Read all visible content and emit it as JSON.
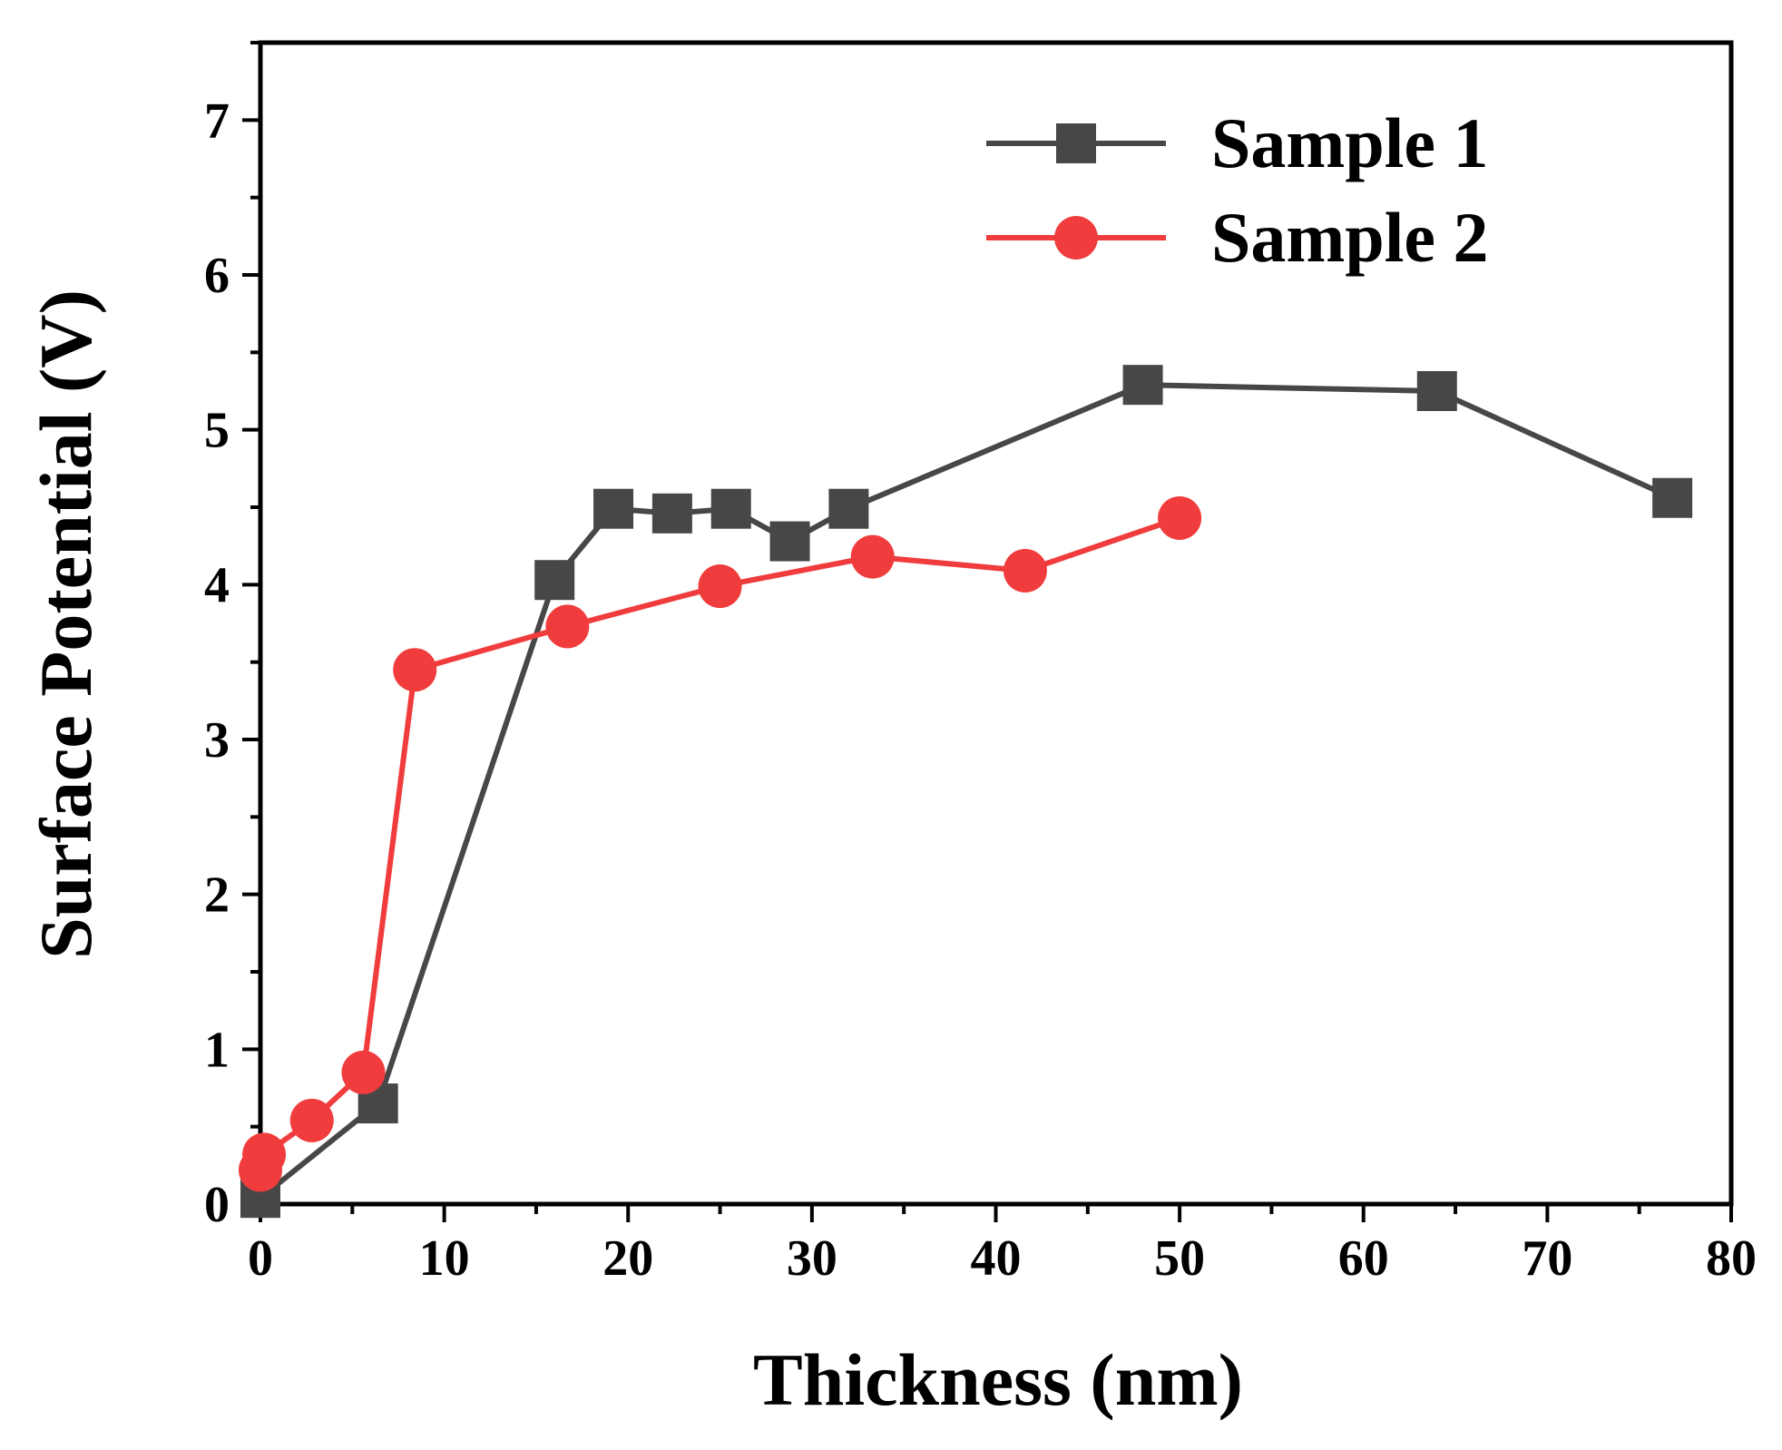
{
  "chart_data": {
    "type": "line",
    "title": "",
    "xlabel": "Thickness (nm)",
    "ylabel": "Surface Potential (V)",
    "xlim": [
      0,
      80
    ],
    "ylim": [
      0,
      7.5
    ],
    "xticks": [
      0,
      10,
      20,
      30,
      40,
      50,
      60,
      70,
      80
    ],
    "yticks": [
      0,
      1,
      2,
      3,
      4,
      5,
      6,
      7
    ],
    "xtick_labels": [
      "0",
      "10",
      "20",
      "30",
      "40",
      "50",
      "60",
      "70",
      "80"
    ],
    "ytick_labels": [
      "0",
      "1",
      "2",
      "3",
      "4",
      "5",
      "6",
      "7"
    ],
    "grid": false,
    "legend_position": "top-right",
    "series": [
      {
        "name": "Sample 1",
        "marker": "square",
        "color": "#474747",
        "x": [
          0,
          6.4,
          16,
          19.2,
          22.4,
          25.6,
          28.8,
          32,
          48,
          64,
          76.8
        ],
        "y": [
          0.04,
          0.65,
          4.03,
          4.49,
          4.46,
          4.49,
          4.28,
          4.49,
          5.29,
          5.25,
          4.56
        ]
      },
      {
        "name": "Sample 2",
        "marker": "circle",
        "color": "#f03c3c",
        "x": [
          0,
          0.2,
          2.8,
          5.6,
          8.4,
          16.7,
          25,
          33.3,
          41.6,
          50
        ],
        "y": [
          0.22,
          0.32,
          0.54,
          0.85,
          3.45,
          3.73,
          3.99,
          4.18,
          4.09,
          4.43
        ]
      }
    ]
  }
}
